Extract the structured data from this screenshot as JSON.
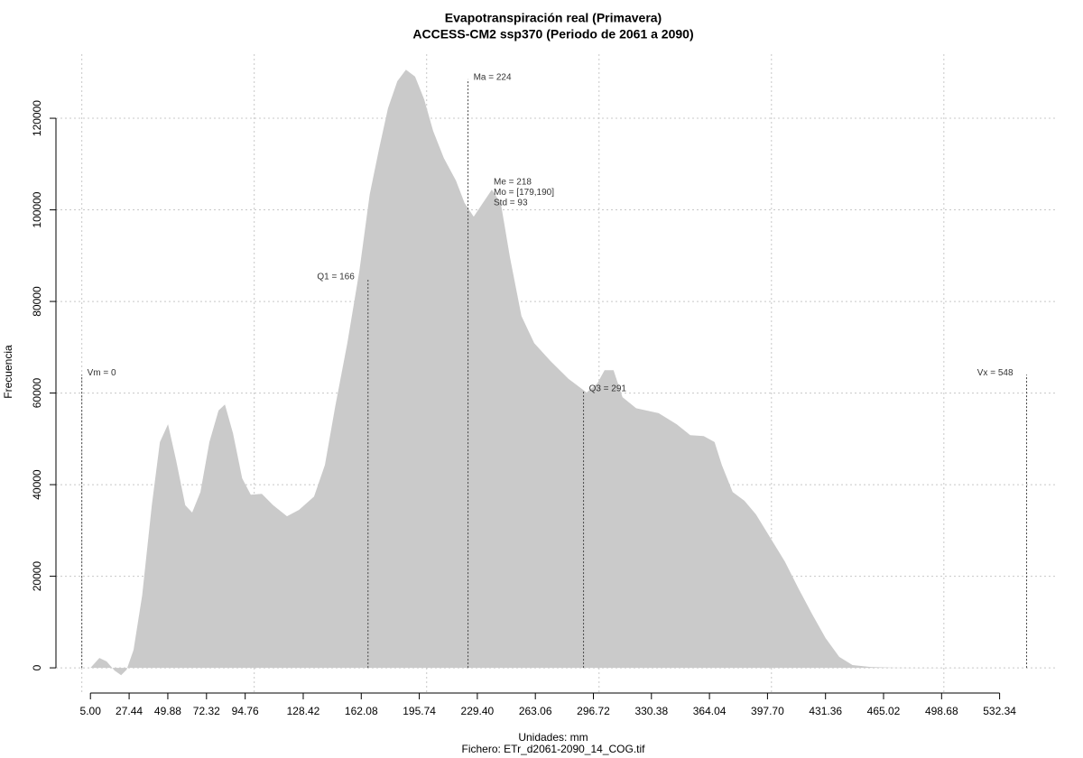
{
  "chart_data": {
    "type": "area",
    "title": "Evapotranspiración real (Primavera)",
    "subtitle": "ACCESS-CM2 ssp370 (Periodo de 2061 a 2090)",
    "x_label": "Unidades: mm",
    "file_label": "Fichero: ETr_d2061-2090_14_COG.tif",
    "y_label": "Frecuencia",
    "color": "#cacaca",
    "grid": true,
    "xgrid": [
      0,
      100,
      200,
      300,
      400,
      500
    ],
    "xlim": [
      -15,
      565
    ],
    "ylim": [
      -5500,
      134000
    ],
    "xticks": [
      {
        "value": 5,
        "label": "5.00"
      },
      27.44,
      49.88,
      72.32,
      94.76,
      128.42,
      162.08,
      195.74,
      {
        "value": 229.4,
        "label": "229.40"
      },
      263.06,
      296.72,
      330.38,
      364.04,
      {
        "value": 397.7,
        "label": "397.70"
      },
      431.36,
      465.02,
      498.68,
      532.34
    ],
    "yticks": [
      0,
      20000,
      40000,
      60000,
      80000,
      100000,
      120000
    ],
    "x": [
      5,
      10.2,
      14.4,
      19,
      22.8,
      26,
      30,
      35,
      40.6,
      45.3,
      50,
      54.7,
      60,
      64,
      68.8,
      74,
      79.3,
      83,
      87.7,
      93,
      98,
      104.4,
      111,
      119,
      126,
      134.7,
      141,
      147,
      154,
      161,
      167,
      172.4,
      177.6,
      183,
      188,
      193.3,
      198.6,
      203.8,
      210,
      217,
      222,
      227.3,
      232.6,
      237.8,
      243,
      248.3,
      255,
      262.4,
      271.8,
      282.3,
      292.8,
      299,
      303.2,
      308.4,
      313.6,
      321.5,
      334.6,
      345,
      352.9,
      360.7,
      367,
      371.2,
      377.5,
      384.3,
      391,
      400,
      407.8,
      415.7,
      423.5,
      431.4,
      439.3,
      447,
      457.5,
      470.6,
      496.8,
      543
    ],
    "values": [
      0,
      2170,
      1400,
      -600,
      -1600,
      -400,
      3900,
      15800,
      35500,
      49300,
      53200,
      45300,
      35500,
      33900,
      38400,
      49300,
      56200,
      57500,
      51200,
      41400,
      37800,
      38000,
      35500,
      33100,
      34500,
      37400,
      44300,
      57100,
      70900,
      86700,
      103400,
      113300,
      122200,
      128100,
      130600,
      129100,
      124100,
      117200,
      111300,
      106400,
      101500,
      98500,
      101500,
      104400,
      101500,
      89700,
      76800,
      70900,
      67000,
      63100,
      60100,
      62100,
      65000,
      65000,
      59100,
      56700,
      55600,
      53200,
      50800,
      50600,
      49300,
      44300,
      38400,
      36500,
      33500,
      28000,
      23200,
      17300,
      11800,
      6500,
      2400,
      600,
      200,
      50,
      10,
      0
    ],
    "annotations": [
      {
        "label": "Vm = 0",
        "x": 0,
        "y": 64000,
        "side": "right"
      },
      {
        "label": "Q1 = 166",
        "x": 166,
        "y": 85000,
        "side": "left"
      },
      {
        "label": "Ma = 224",
        "x": 224,
        "y": 128500,
        "side": "right"
      },
      {
        "label": "Q3 = 291",
        "x": 291,
        "y": 60500,
        "side": "right"
      },
      {
        "label": "Vx = 548",
        "x": 548,
        "y": 64000,
        "side": "left"
      }
    ],
    "stats_text": [
      "Me = 218",
      "Mo = [179,190]",
      "Std = 93"
    ]
  }
}
